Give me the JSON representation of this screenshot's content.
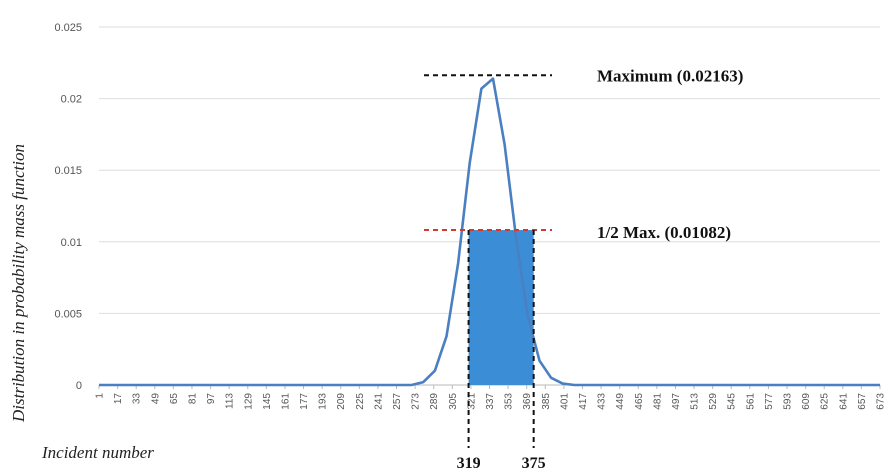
{
  "chart_data": {
    "type": "line",
    "xlabel": "Incident number",
    "ylabel": "Distribution in probability mass function",
    "ylim": [
      0,
      0.025
    ],
    "y_ticks": [
      "0",
      "0.005",
      "0.01",
      "0.015",
      "0.02",
      "0.025"
    ],
    "x_ticks": [
      1,
      17,
      33,
      49,
      65,
      81,
      97,
      113,
      129,
      145,
      161,
      177,
      193,
      209,
      225,
      241,
      257,
      273,
      289,
      305,
      321,
      337,
      353,
      369,
      385,
      401,
      417,
      433,
      449,
      465,
      481,
      497,
      513,
      529,
      545,
      561,
      577,
      593,
      609,
      625,
      641,
      657,
      673
    ],
    "xlim": [
      1,
      673
    ],
    "grid": true,
    "series": [
      {
        "color": "#4a7fc1",
        "x": [
          1,
          250,
          270,
          280,
          290,
          300,
          310,
          320,
          330,
          340,
          350,
          360,
          370,
          380,
          390,
          400,
          410,
          430,
          673
        ],
        "y": [
          0,
          0,
          0.0,
          0.0002,
          0.001,
          0.0034,
          0.0085,
          0.0155,
          0.0207,
          0.0214,
          0.0168,
          0.0102,
          0.0048,
          0.0017,
          0.0005,
          0.0001,
          0,
          0,
          0
        ]
      }
    ],
    "maximum": {
      "value": 0.02163,
      "x": 337,
      "label": "Maximum (0.02163)",
      "line_color": "#111111"
    },
    "half_maximum": {
      "value": 0.01082,
      "label": "1/2 Max. (0.01082)",
      "line_color": "#d03a2f"
    },
    "interval": {
      "start": 319,
      "end": 375,
      "start_label": "319",
      "end_label": "375",
      "fill": "#3b8ed6"
    }
  }
}
